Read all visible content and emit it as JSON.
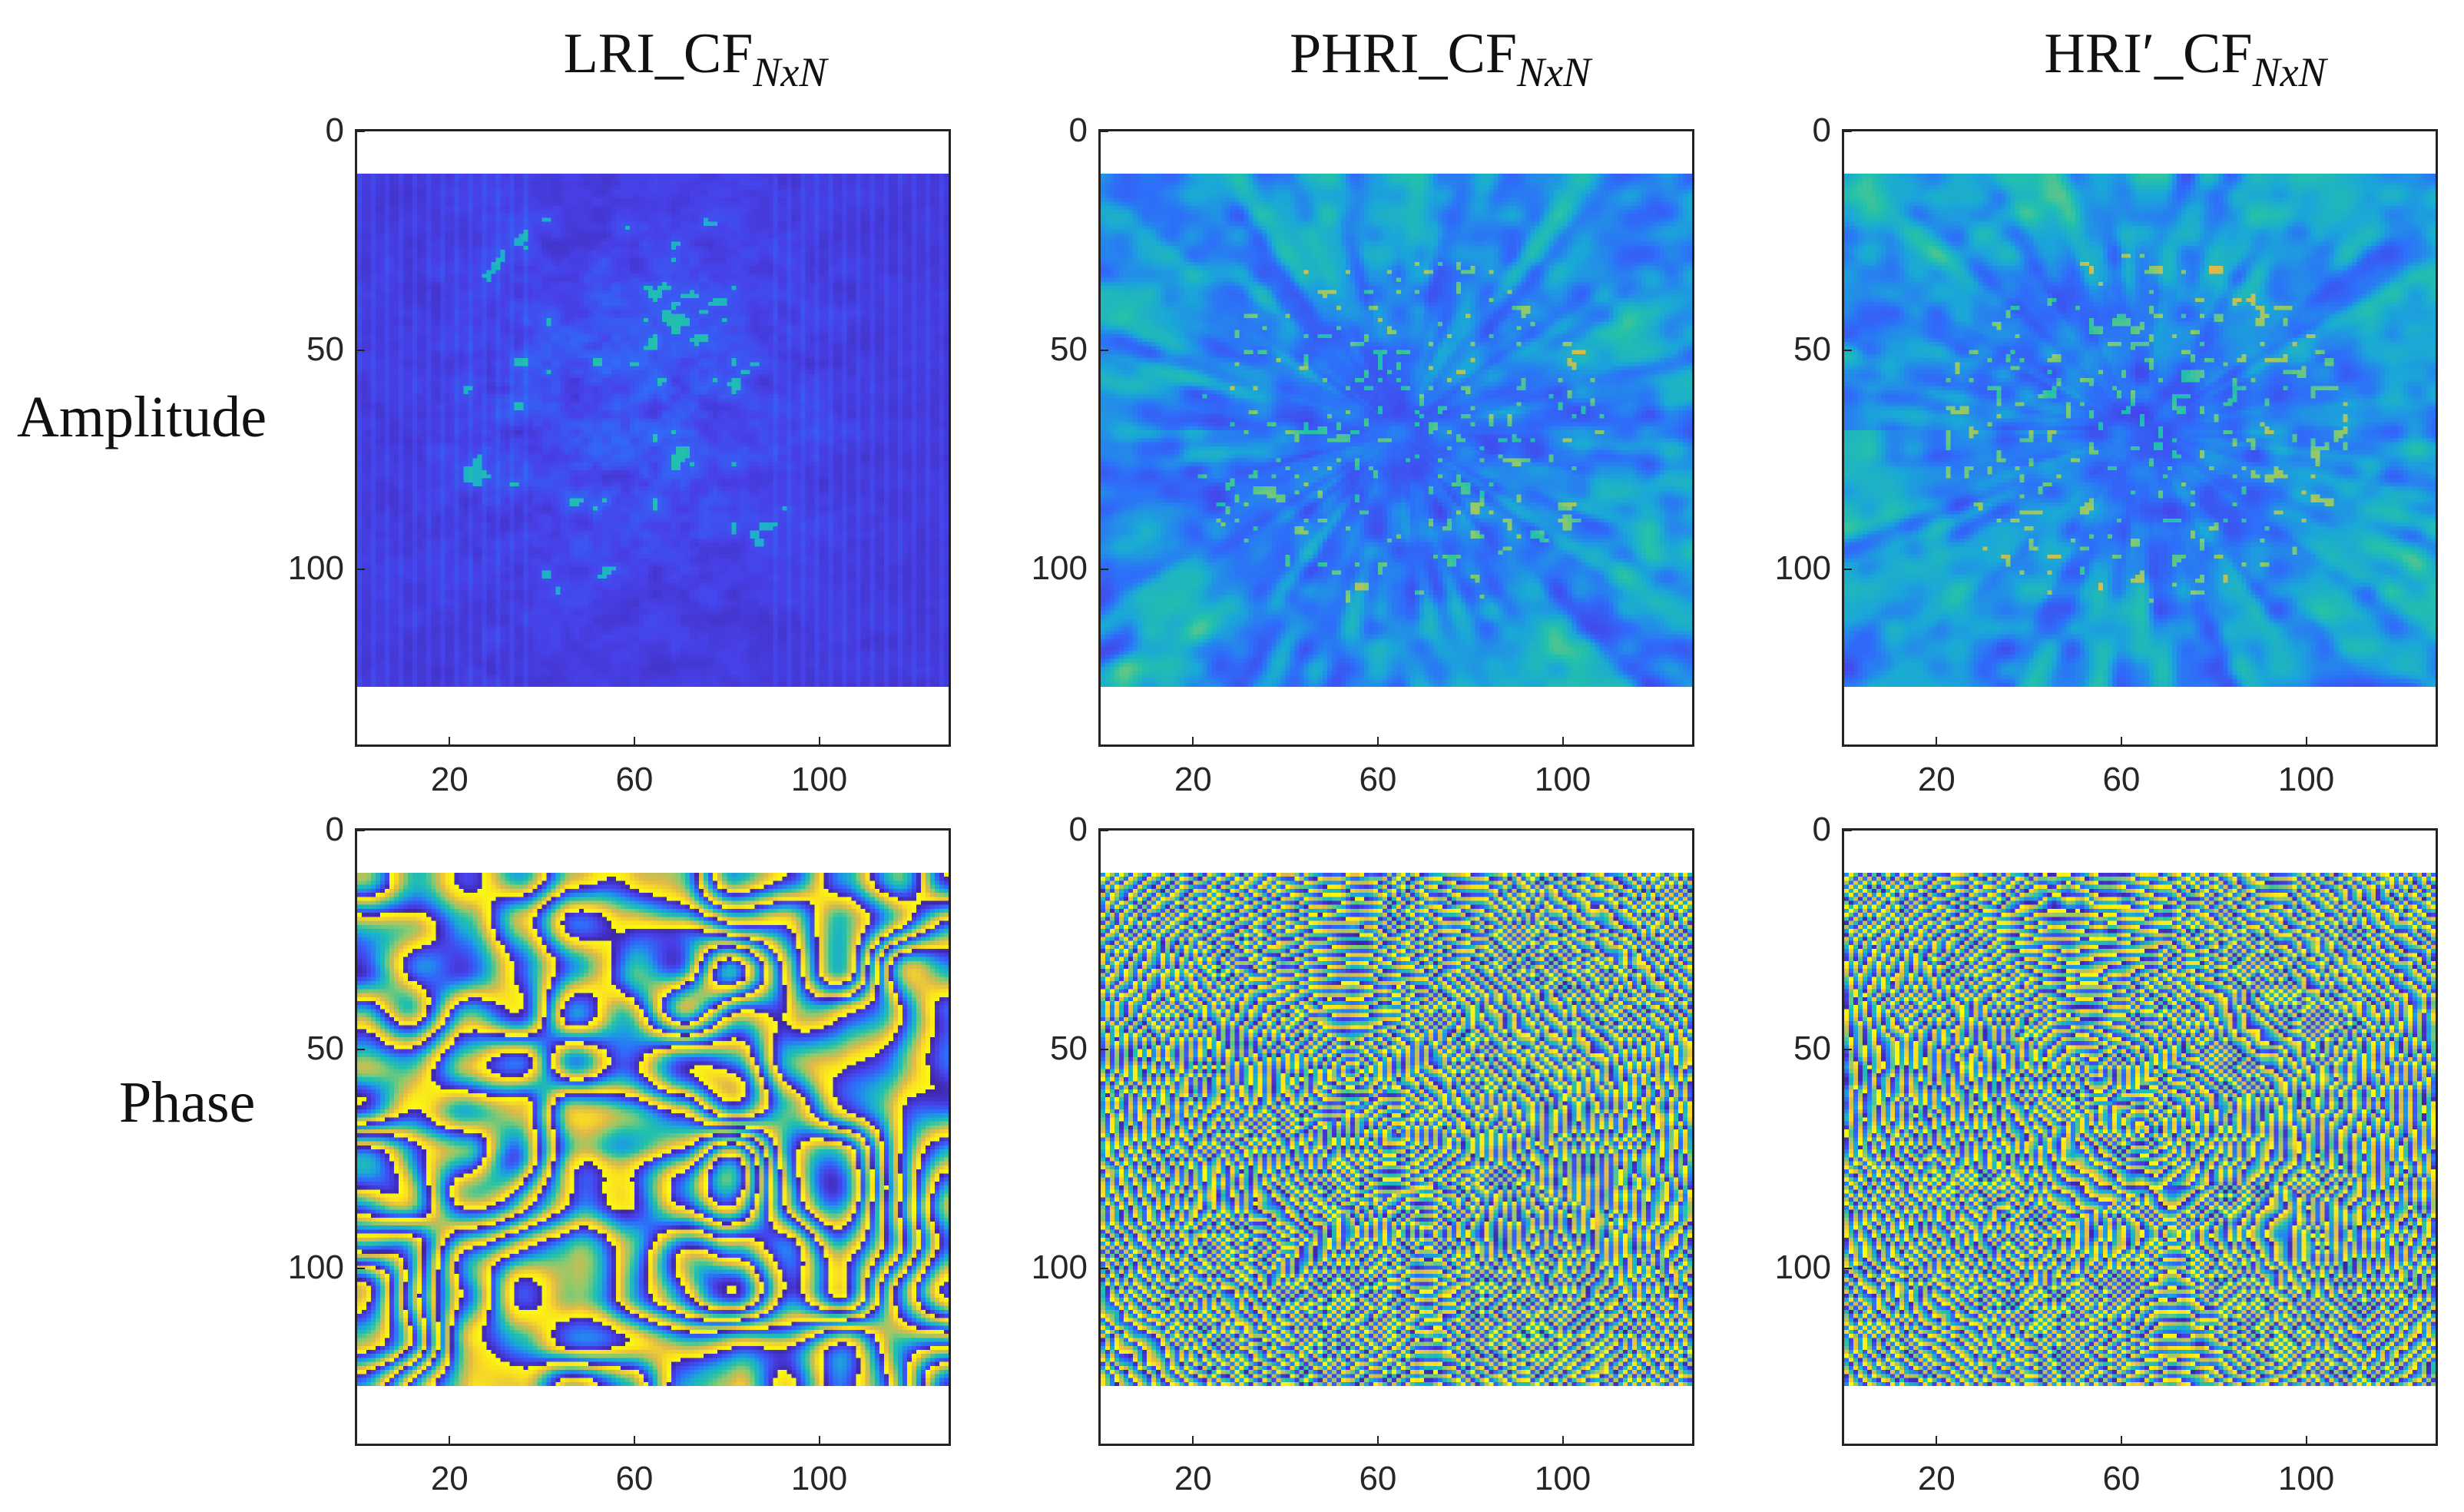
{
  "chart_data": {
    "type": "heatmap",
    "colormap": "parula",
    "colors": [
      "#3e26a8",
      "#4741e9",
      "#2d6ff9",
      "#1aa7d8",
      "#23c1aa",
      "#8dca6c",
      "#e0b948",
      "#fbe01f",
      "#f9fb0e"
    ],
    "columns": [
      {
        "title": "LRI_CF",
        "title_sub": "NxN"
      },
      {
        "title": "PHRI_CF",
        "title_sub": "NxN"
      },
      {
        "title": "HRI′_CF",
        "title_sub": "NxN"
      }
    ],
    "rows": [
      {
        "label": "Amplitude"
      },
      {
        "label": "Phase"
      }
    ],
    "x_ticks": [
      "20",
      "60",
      "100"
    ],
    "y_ticks": [
      "0",
      "50",
      "100"
    ],
    "x_range": [
      0,
      128
    ],
    "y_range": [
      0,
      140
    ],
    "image_extent": {
      "rows": 128,
      "cols": 128
    }
  }
}
